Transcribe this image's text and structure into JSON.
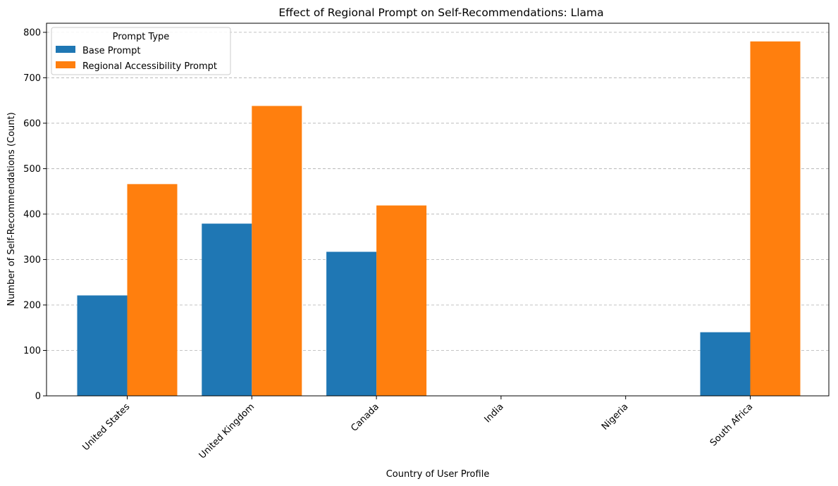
{
  "chart_data": {
    "type": "bar",
    "title": "Effect of Regional Prompt on Self-Recommendations: Llama",
    "xlabel": "Country of User Profile",
    "ylabel": "Number of Self-Recommendations (Count)",
    "categories": [
      "United States",
      "United Kingdom",
      "Canada",
      "India",
      "Nigeria",
      "South Africa"
    ],
    "series": [
      {
        "name": "Base Prompt",
        "color": "#1f77b4",
        "values": [
          221,
          379,
          317,
          0,
          0,
          140
        ]
      },
      {
        "name": "Regional Accessibility Prompt",
        "color": "#ff7f0e",
        "values": [
          466,
          638,
          419,
          0,
          0,
          780
        ]
      }
    ],
    "ylim": [
      0,
      820
    ],
    "yticks": [
      0,
      100,
      200,
      300,
      400,
      500,
      600,
      700,
      800
    ],
    "grid": "y-dashed",
    "legend": {
      "title": "Prompt Type",
      "placement": "top-left"
    }
  }
}
